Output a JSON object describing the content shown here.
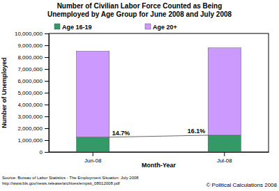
{
  "chart_data": {
    "type": "bar",
    "stacked": true,
    "title": [
      "Number of Civilian Labor Force Counted as Being",
      "Unemployed by Age Group for June 2008 and July 2008"
    ],
    "x_label": "Month-Year",
    "y_label": "Number of Unemployed",
    "categories": [
      "Jun-08",
      "Jul-08"
    ],
    "series": [
      {
        "name": "Age 16-19",
        "color": "#339966",
        "values": [
          1250000,
          1414000
        ]
      },
      {
        "name": "Age 20+",
        "color": "#cc99ff",
        "values": [
          7250000,
          7370000
        ]
      }
    ],
    "ylim": [
      0,
      10000000
    ],
    "yticks": [
      0,
      {
        "value": 1000000,
        "label": "1,000,000"
      },
      {
        "value": 2000000,
        "label": "2,000,000"
      },
      {
        "value": 3000000,
        "label": "3,000,000"
      },
      {
        "value": 4000000,
        "label": "4,000,000"
      },
      {
        "value": 5000000,
        "label": "5,000,000"
      },
      {
        "value": 6000000,
        "label": "6,000,000"
      },
      {
        "value": 7000000,
        "label": "7,000,000"
      },
      {
        "value": 8000000,
        "label": "8,000,000"
      },
      {
        "value": 9000000,
        "label": "9,000,000"
      },
      {
        "value": 10000000,
        "label": "10,000,000"
      }
    ],
    "grid": false,
    "legend": "top",
    "annotations": [
      {
        "text": "14.7%",
        "category": "Jun-08"
      },
      {
        "text": "16.1%",
        "category": "Jul-08"
      }
    ],
    "source": [
      "Source: Bureau of Labor Statistics - The Employment Situation: July 2008",
      "http://www.bls.gov/news.release/archives/empsit_08012008.pdf"
    ],
    "credit": "© Political Calculations 2008"
  }
}
